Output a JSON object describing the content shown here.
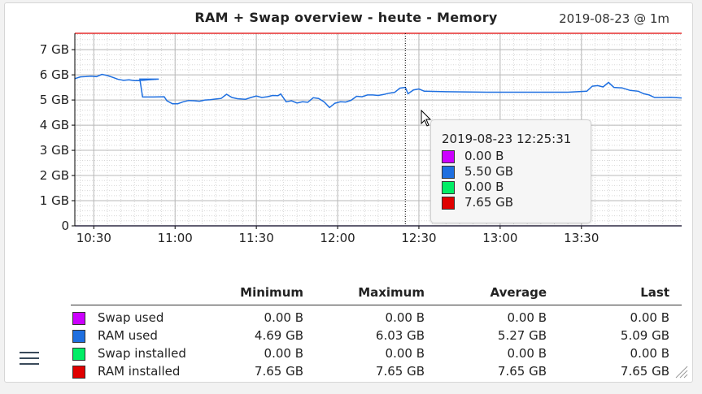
{
  "title": "RAM + Swap overview - heute - Memory",
  "timestamp": "2019-08-23 @ 1m",
  "chart_data": {
    "type": "line",
    "ylim": [
      0,
      7.65
    ],
    "y_ticks": [
      {
        "value": 0,
        "label": "0"
      },
      {
        "value": 1,
        "label": "1 GB"
      },
      {
        "value": 2,
        "label": "2 GB"
      },
      {
        "value": 3,
        "label": "3 GB"
      },
      {
        "value": 4,
        "label": "4 GB"
      },
      {
        "value": 5,
        "label": "5 GB"
      },
      {
        "value": 6,
        "label": "6 GB"
      },
      {
        "value": 7,
        "label": "7 GB"
      }
    ],
    "xlim": [
      "10:23",
      "14:07"
    ],
    "x_ticks": [
      "10:30",
      "11:00",
      "11:30",
      "12:00",
      "12:30",
      "13:00",
      "13:30"
    ],
    "series": [
      {
        "name": "Swap used",
        "color": "#cc00ff",
        "points": [
          [
            "10:23",
            0
          ],
          [
            "14:07",
            0
          ]
        ]
      },
      {
        "name": "RAM used",
        "color": "#1e6fe0",
        "points": [
          [
            "10:23",
            5.85
          ],
          [
            "10:25",
            5.92
          ],
          [
            "10:27",
            5.93
          ],
          [
            "10:29",
            5.95
          ],
          [
            "10:31",
            5.93
          ],
          [
            "10:33",
            6.02
          ],
          [
            "10:35",
            5.97
          ],
          [
            "10:37",
            5.9
          ],
          [
            "10:39",
            5.82
          ],
          [
            "10:41",
            5.78
          ],
          [
            "10:43",
            5.8
          ],
          [
            "10:45",
            5.77
          ],
          [
            "10:48",
            5.78
          ],
          [
            "10:51",
            5.81
          ],
          [
            "10:54",
            5.83
          ],
          [
            "10:47",
            5.83
          ],
          [
            "10:48",
            5.12
          ],
          [
            "10:52",
            5.12
          ],
          [
            "10:56",
            5.13
          ],
          [
            "10:57",
            4.97
          ],
          [
            "10:59",
            4.85
          ],
          [
            "11:01",
            4.85
          ],
          [
            "11:03",
            4.93
          ],
          [
            "11:05",
            4.98
          ],
          [
            "11:07",
            4.97
          ],
          [
            "11:09",
            4.95
          ],
          [
            "11:11",
            5.0
          ],
          [
            "11:13",
            5.01
          ],
          [
            "11:15",
            5.04
          ],
          [
            "11:17",
            5.06
          ],
          [
            "11:19",
            5.23
          ],
          [
            "11:21",
            5.1
          ],
          [
            "11:23",
            5.05
          ],
          [
            "11:26",
            5.03
          ],
          [
            "11:28",
            5.1
          ],
          [
            "11:30",
            5.16
          ],
          [
            "11:32",
            5.1
          ],
          [
            "11:34",
            5.13
          ],
          [
            "11:36",
            5.18
          ],
          [
            "11:38",
            5.17
          ],
          [
            "11:39",
            5.24
          ],
          [
            "11:41",
            4.93
          ],
          [
            "11:43",
            4.97
          ],
          [
            "11:45",
            4.88
          ],
          [
            "11:47",
            4.93
          ],
          [
            "11:49",
            4.91
          ],
          [
            "11:51",
            5.09
          ],
          [
            "11:53",
            5.06
          ],
          [
            "11:55",
            4.93
          ],
          [
            "11:57",
            4.7
          ],
          [
            "11:59",
            4.87
          ],
          [
            "12:01",
            4.93
          ],
          [
            "12:03",
            4.92
          ],
          [
            "12:05",
            4.99
          ],
          [
            "12:07",
            5.15
          ],
          [
            "12:09",
            5.13
          ],
          [
            "12:11",
            5.2
          ],
          [
            "12:13",
            5.2
          ],
          [
            "12:15",
            5.18
          ],
          [
            "12:17",
            5.22
          ],
          [
            "12:19",
            5.27
          ],
          [
            "12:21",
            5.3
          ],
          [
            "12:23",
            5.47
          ],
          [
            "12:25",
            5.5
          ],
          [
            "12:26",
            5.25
          ],
          [
            "12:28",
            5.4
          ],
          [
            "12:30",
            5.44
          ],
          [
            "12:32",
            5.35
          ],
          [
            "12:40",
            5.33
          ],
          [
            "12:55",
            5.31
          ],
          [
            "13:10",
            5.31
          ],
          [
            "13:25",
            5.31
          ],
          [
            "13:32",
            5.35
          ],
          [
            "13:34",
            5.55
          ],
          [
            "13:36",
            5.57
          ],
          [
            "13:38",
            5.52
          ],
          [
            "13:40",
            5.7
          ],
          [
            "13:42",
            5.5
          ],
          [
            "13:45",
            5.48
          ],
          [
            "13:48",
            5.38
          ],
          [
            "13:51",
            5.35
          ],
          [
            "13:53",
            5.25
          ],
          [
            "13:55",
            5.2
          ],
          [
            "13:57",
            5.1
          ],
          [
            "14:00",
            5.1
          ],
          [
            "14:03",
            5.11
          ],
          [
            "14:07",
            5.08
          ]
        ]
      },
      {
        "name": "Swap installed",
        "color": "#00ee66",
        "points": [
          [
            "10:23",
            0
          ],
          [
            "14:07",
            0
          ]
        ]
      },
      {
        "name": "RAM installed",
        "color": "#e00000",
        "points": [
          [
            "10:23",
            7.65
          ],
          [
            "14:07",
            7.65
          ]
        ]
      }
    ],
    "hover_time": "12:25"
  },
  "tooltip": {
    "time": "2019-08-23 12:25:31",
    "rows": [
      {
        "color": "#cc00ff",
        "value": "0.00 B"
      },
      {
        "color": "#1e6fe0",
        "value": "5.50 GB"
      },
      {
        "color": "#00ee66",
        "value": "0.00 B"
      },
      {
        "color": "#e00000",
        "value": "7.65 GB"
      }
    ]
  },
  "legend": {
    "headers": [
      "Minimum",
      "Maximum",
      "Average",
      "Last"
    ],
    "rows": [
      {
        "name": "Swap used",
        "color": "#cc00ff",
        "min": "0.00 B",
        "max": "0.00 B",
        "avg": "0.00 B",
        "last": "0.00 B"
      },
      {
        "name": "RAM used",
        "color": "#1e6fe0",
        "min": "4.69 GB",
        "max": "6.03 GB",
        "avg": "5.27 GB",
        "last": "5.09 GB"
      },
      {
        "name": "Swap installed",
        "color": "#00ee66",
        "min": "0.00 B",
        "max": "0.00 B",
        "avg": "0.00 B",
        "last": "0.00 B"
      },
      {
        "name": "RAM installed",
        "color": "#e00000",
        "min": "7.65 GB",
        "max": "7.65 GB",
        "avg": "7.65 GB",
        "last": "7.65 GB"
      }
    ]
  },
  "icons": {
    "menu": "hamburger-menu-icon",
    "resize": "resize-handle-icon",
    "cursor": "mouse-pointer-icon"
  }
}
